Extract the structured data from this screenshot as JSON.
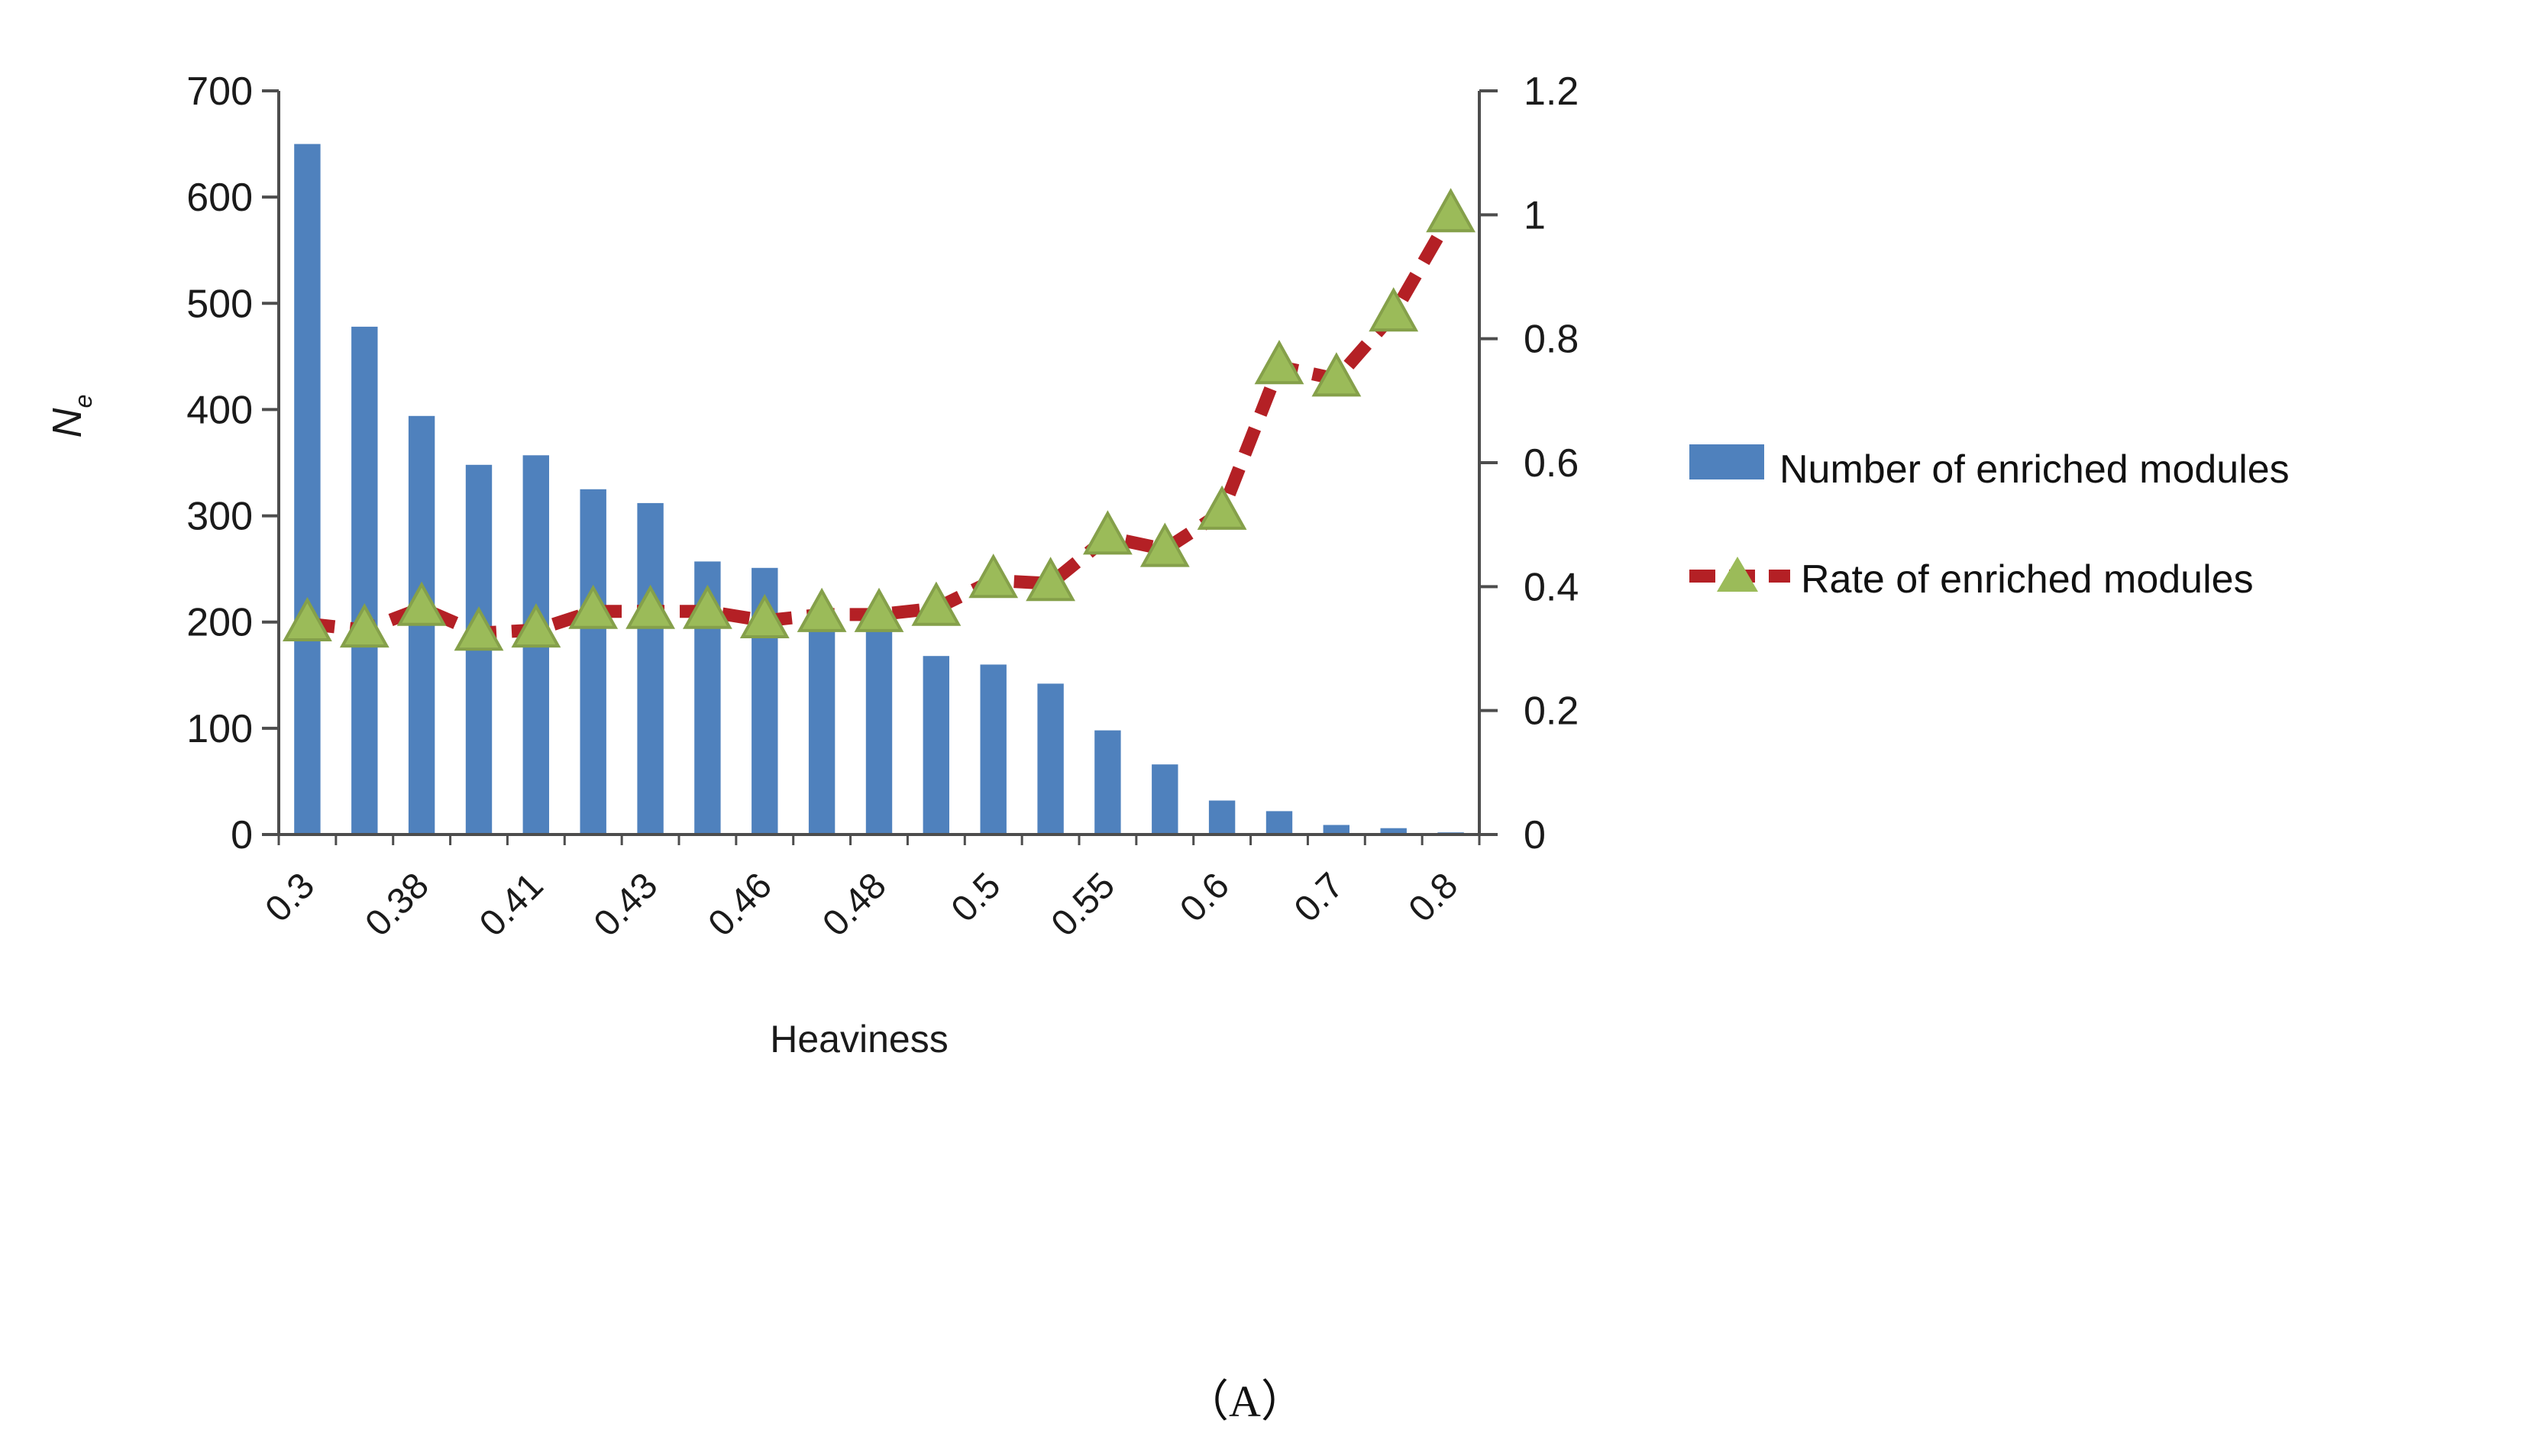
{
  "colors": {
    "bar": "#4f81bd",
    "line": "#b42025",
    "marker_fill": "#9bbb59",
    "marker_edge": "#85a04a",
    "axis": "#4d4d4d",
    "text": "#1a1a1a"
  },
  "chart_data": {
    "type": "bar",
    "subtype": "combo-bar-line-dual-axis",
    "n_categories": 21,
    "x_axis": {
      "label": "Heaviness",
      "tick_labels": [
        "0.3",
        "0.38",
        "0.41",
        "0.43",
        "0.46",
        "0.48",
        "0.5",
        "0.55",
        "0.6",
        "0.7",
        "0.8"
      ],
      "tick_positions": [
        0,
        2,
        4,
        6,
        8,
        10,
        12,
        14,
        16,
        18,
        20
      ]
    },
    "left_axis": {
      "title_main": "N",
      "title_sub": "e",
      "min": 0,
      "max": 700,
      "tick_step": 100,
      "tick_labels": [
        "700",
        "600",
        "500",
        "400",
        "300",
        "200",
        "100",
        "0"
      ]
    },
    "right_axis": {
      "min": 0,
      "max": 1.2,
      "tick_step": 0.2,
      "tick_labels": [
        "1.2",
        "1",
        "0.8",
        "0.6",
        "0.4",
        "0.2",
        "0"
      ]
    },
    "series": [
      {
        "name": "Number of enriched modules",
        "type": "bar",
        "axis": "left",
        "values": [
          650,
          478,
          394,
          348,
          357,
          325,
          312,
          257,
          251,
          196,
          194,
          168,
          160,
          142,
          98,
          66,
          32,
          22,
          9,
          6,
          2
        ]
      },
      {
        "name": "Rate of enriched modules",
        "type": "line",
        "axis": "right",
        "values": [
          0.34,
          0.33,
          0.365,
          0.325,
          0.33,
          0.36,
          0.36,
          0.36,
          0.345,
          0.355,
          0.355,
          0.365,
          0.41,
          0.405,
          0.48,
          0.46,
          0.52,
          0.755,
          0.735,
          0.84,
          1.0
        ]
      }
    ],
    "legend_position": "right",
    "grid": false,
    "caption": "（A）"
  }
}
